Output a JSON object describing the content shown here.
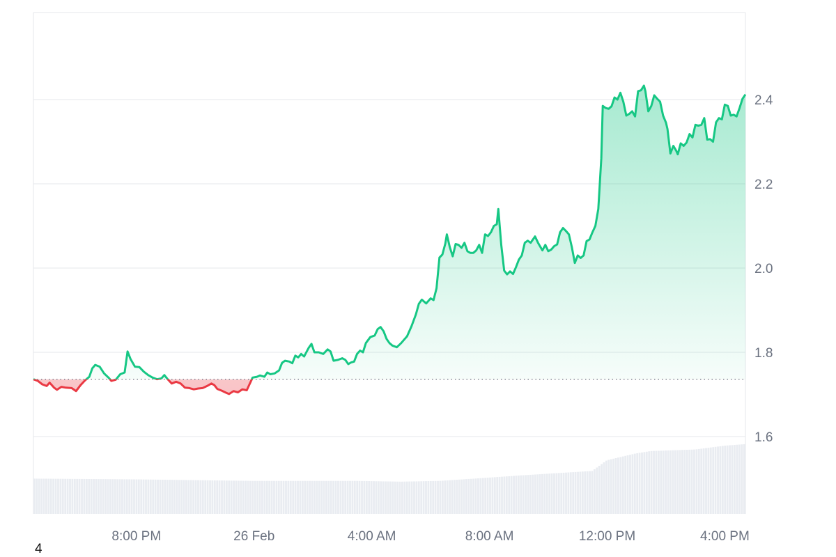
{
  "chart_data": {
    "type": "area",
    "baseline": 1.736,
    "ylim": [
      1.42,
      2.62
    ],
    "y_ticks": [
      1.6,
      1.8,
      2.0,
      2.2,
      2.4
    ],
    "y_tick_labels": [
      "1.6",
      "1.8",
      "2.0",
      "2.2",
      "2.4"
    ],
    "x_ticks": [
      {
        "label": "8:00 PM",
        "t": 6
      },
      {
        "label": "26 Feb",
        "t": 10
      },
      {
        "label": "4:00 AM",
        "t": 14
      },
      {
        "label": "8:00 AM",
        "t": 18
      },
      {
        "label": "12:00 PM",
        "t": 22
      },
      {
        "label": "4:00 PM",
        "t": 26
      }
    ],
    "x_range": [
      2.5,
      26.7
    ],
    "grid": true,
    "colors": {
      "up": "#16c784",
      "down": "#ea3943",
      "grid": "#e5e7eb",
      "volume": "#e9ecf1",
      "baseline": "#6b7280"
    },
    "series": [
      {
        "points": [
          [
            2.5,
            1.736
          ],
          [
            2.65,
            1.732
          ],
          [
            2.8,
            1.724
          ],
          [
            2.95,
            1.72
          ],
          [
            3.05,
            1.728
          ],
          [
            3.2,
            1.716
          ],
          [
            3.3,
            1.711
          ],
          [
            3.45,
            1.718
          ],
          [
            3.6,
            1.716
          ],
          [
            3.8,
            1.715
          ],
          [
            3.95,
            1.708
          ],
          [
            4.1,
            1.722
          ],
          [
            4.25,
            1.733
          ],
          [
            4.4,
            1.742
          ],
          [
            4.5,
            1.762
          ],
          [
            4.6,
            1.77
          ],
          [
            4.75,
            1.766
          ],
          [
            4.9,
            1.75
          ],
          [
            5.05,
            1.74
          ],
          [
            5.15,
            1.732
          ],
          [
            5.3,
            1.735
          ],
          [
            5.45,
            1.748
          ],
          [
            5.6,
            1.752
          ],
          [
            5.7,
            1.802
          ],
          [
            5.8,
            1.784
          ],
          [
            5.95,
            1.766
          ],
          [
            6.1,
            1.765
          ],
          [
            6.25,
            1.754
          ],
          [
            6.4,
            1.746
          ],
          [
            6.55,
            1.74
          ],
          [
            6.7,
            1.736
          ],
          [
            6.85,
            1.738
          ],
          [
            6.95,
            1.746
          ],
          [
            7.05,
            1.737
          ],
          [
            7.2,
            1.726
          ],
          [
            7.35,
            1.73
          ],
          [
            7.5,
            1.726
          ],
          [
            7.65,
            1.716
          ],
          [
            7.8,
            1.715
          ],
          [
            7.95,
            1.712
          ],
          [
            8.1,
            1.714
          ],
          [
            8.25,
            1.715
          ],
          [
            8.4,
            1.72
          ],
          [
            8.55,
            1.726
          ],
          [
            8.65,
            1.722
          ],
          [
            8.75,
            1.713
          ],
          [
            8.9,
            1.709
          ],
          [
            9.05,
            1.704
          ],
          [
            9.15,
            1.701
          ],
          [
            9.3,
            1.708
          ],
          [
            9.45,
            1.705
          ],
          [
            9.6,
            1.712
          ],
          [
            9.75,
            1.71
          ],
          [
            9.85,
            1.725
          ],
          [
            9.95,
            1.74
          ],
          [
            10.1,
            1.742
          ],
          [
            10.2,
            1.745
          ],
          [
            10.35,
            1.742
          ],
          [
            10.45,
            1.752
          ],
          [
            10.55,
            1.748
          ],
          [
            10.7,
            1.75
          ],
          [
            10.85,
            1.757
          ],
          [
            10.95,
            1.775
          ],
          [
            11.05,
            1.78
          ],
          [
            11.2,
            1.778
          ],
          [
            11.3,
            1.774
          ],
          [
            11.4,
            1.792
          ],
          [
            11.5,
            1.788
          ],
          [
            11.6,
            1.796
          ],
          [
            11.7,
            1.79
          ],
          [
            11.85,
            1.81
          ],
          [
            11.95,
            1.82
          ],
          [
            12.05,
            1.8
          ],
          [
            12.2,
            1.8
          ],
          [
            12.35,
            1.796
          ],
          [
            12.5,
            1.807
          ],
          [
            12.6,
            1.802
          ],
          [
            12.7,
            1.78
          ],
          [
            12.85,
            1.782
          ],
          [
            13.0,
            1.786
          ],
          [
            13.1,
            1.782
          ],
          [
            13.2,
            1.772
          ],
          [
            13.3,
            1.776
          ],
          [
            13.4,
            1.778
          ],
          [
            13.5,
            1.796
          ],
          [
            13.6,
            1.804
          ],
          [
            13.7,
            1.8
          ],
          [
            13.8,
            1.822
          ],
          [
            13.95,
            1.836
          ],
          [
            14.1,
            1.84
          ],
          [
            14.2,
            1.855
          ],
          [
            14.3,
            1.86
          ],
          [
            14.4,
            1.85
          ],
          [
            14.5,
            1.832
          ],
          [
            14.6,
            1.822
          ],
          [
            14.7,
            1.816
          ],
          [
            14.85,
            1.812
          ],
          [
            15.0,
            1.822
          ],
          [
            15.1,
            1.83
          ],
          [
            15.2,
            1.838
          ],
          [
            15.35,
            1.862
          ],
          [
            15.5,
            1.89
          ],
          [
            15.6,
            1.915
          ],
          [
            15.7,
            1.925
          ],
          [
            15.85,
            1.916
          ],
          [
            16.0,
            1.928
          ],
          [
            16.1,
            1.924
          ],
          [
            16.2,
            1.952
          ],
          [
            16.3,
            2.025
          ],
          [
            16.4,
            2.032
          ],
          [
            16.5,
            2.058
          ],
          [
            16.55,
            2.08
          ],
          [
            16.65,
            2.05
          ],
          [
            16.75,
            2.028
          ],
          [
            16.85,
            2.057
          ],
          [
            16.95,
            2.055
          ],
          [
            17.05,
            2.048
          ],
          [
            17.15,
            2.06
          ],
          [
            17.25,
            2.04
          ],
          [
            17.35,
            2.036
          ],
          [
            17.45,
            2.036
          ],
          [
            17.55,
            2.042
          ],
          [
            17.65,
            2.055
          ],
          [
            17.75,
            2.036
          ],
          [
            17.85,
            2.08
          ],
          [
            17.95,
            2.076
          ],
          [
            18.05,
            2.085
          ],
          [
            18.15,
            2.1
          ],
          [
            18.25,
            2.104
          ],
          [
            18.3,
            2.14
          ],
          [
            18.4,
            2.055
          ],
          [
            18.5,
            1.994
          ],
          [
            18.6,
            1.985
          ],
          [
            18.7,
            1.992
          ],
          [
            18.8,
            1.986
          ],
          [
            18.9,
            2.002
          ],
          [
            19.0,
            2.02
          ],
          [
            19.1,
            2.03
          ],
          [
            19.2,
            2.06
          ],
          [
            19.3,
            2.065
          ],
          [
            19.4,
            2.06
          ],
          [
            19.55,
            2.075
          ],
          [
            19.65,
            2.06
          ],
          [
            19.8,
            2.042
          ],
          [
            19.9,
            2.055
          ],
          [
            20.0,
            2.04
          ],
          [
            20.1,
            2.044
          ],
          [
            20.2,
            2.052
          ],
          [
            20.3,
            2.056
          ],
          [
            20.4,
            2.085
          ],
          [
            20.5,
            2.095
          ],
          [
            20.6,
            2.088
          ],
          [
            20.7,
            2.08
          ],
          [
            20.8,
            2.05
          ],
          [
            20.9,
            2.012
          ],
          [
            21.0,
            2.03
          ],
          [
            21.1,
            2.024
          ],
          [
            21.2,
            2.03
          ],
          [
            21.3,
            2.064
          ],
          [
            21.4,
            2.068
          ],
          [
            21.5,
            2.085
          ],
          [
            21.6,
            2.1
          ],
          [
            21.7,
            2.14
          ],
          [
            21.8,
            2.26
          ],
          [
            21.85,
            2.385
          ],
          [
            21.95,
            2.38
          ],
          [
            22.05,
            2.378
          ],
          [
            22.15,
            2.384
          ],
          [
            22.25,
            2.405
          ],
          [
            22.35,
            2.4
          ],
          [
            22.45,
            2.416
          ],
          [
            22.55,
            2.395
          ],
          [
            22.65,
            2.362
          ],
          [
            22.75,
            2.366
          ],
          [
            22.85,
            2.372
          ],
          [
            22.95,
            2.36
          ],
          [
            23.05,
            2.42
          ],
          [
            23.15,
            2.422
          ],
          [
            23.25,
            2.433
          ],
          [
            23.3,
            2.42
          ],
          [
            23.4,
            2.372
          ],
          [
            23.5,
            2.385
          ],
          [
            23.6,
            2.41
          ],
          [
            23.7,
            2.402
          ],
          [
            23.8,
            2.395
          ],
          [
            23.9,
            2.362
          ],
          [
            24.0,
            2.345
          ],
          [
            24.05,
            2.33
          ],
          [
            24.15,
            2.272
          ],
          [
            24.25,
            2.29
          ],
          [
            24.35,
            2.278
          ],
          [
            24.4,
            2.27
          ],
          [
            24.5,
            2.296
          ],
          [
            24.6,
            2.29
          ],
          [
            24.7,
            2.298
          ],
          [
            24.8,
            2.318
          ],
          [
            24.9,
            2.31
          ],
          [
            25.0,
            2.34
          ],
          [
            25.1,
            2.338
          ],
          [
            25.2,
            2.34
          ],
          [
            25.3,
            2.356
          ],
          [
            25.4,
            2.305
          ],
          [
            25.5,
            2.306
          ],
          [
            25.6,
            2.3
          ],
          [
            25.7,
            2.346
          ],
          [
            25.8,
            2.356
          ],
          [
            25.9,
            2.353
          ],
          [
            26.0,
            2.388
          ],
          [
            26.1,
            2.385
          ],
          [
            26.2,
            2.362
          ],
          [
            26.3,
            2.364
          ],
          [
            26.4,
            2.36
          ],
          [
            26.5,
            2.38
          ],
          [
            26.6,
            2.402
          ],
          [
            26.7,
            2.412
          ]
        ]
      }
    ],
    "volume": [
      [
        2.5,
        0.46
      ],
      [
        6.0,
        0.45
      ],
      [
        8.0,
        0.44
      ],
      [
        10.0,
        0.43
      ],
      [
        13.5,
        0.43
      ],
      [
        15.0,
        0.42
      ],
      [
        16.3,
        0.43
      ],
      [
        17.5,
        0.46
      ],
      [
        19.0,
        0.5
      ],
      [
        21.5,
        0.56
      ],
      [
        22.0,
        0.7
      ],
      [
        23.0,
        0.79
      ],
      [
        23.5,
        0.82
      ],
      [
        25.0,
        0.84
      ],
      [
        26.0,
        0.89
      ],
      [
        26.7,
        0.91
      ]
    ]
  },
  "footnote": "4"
}
